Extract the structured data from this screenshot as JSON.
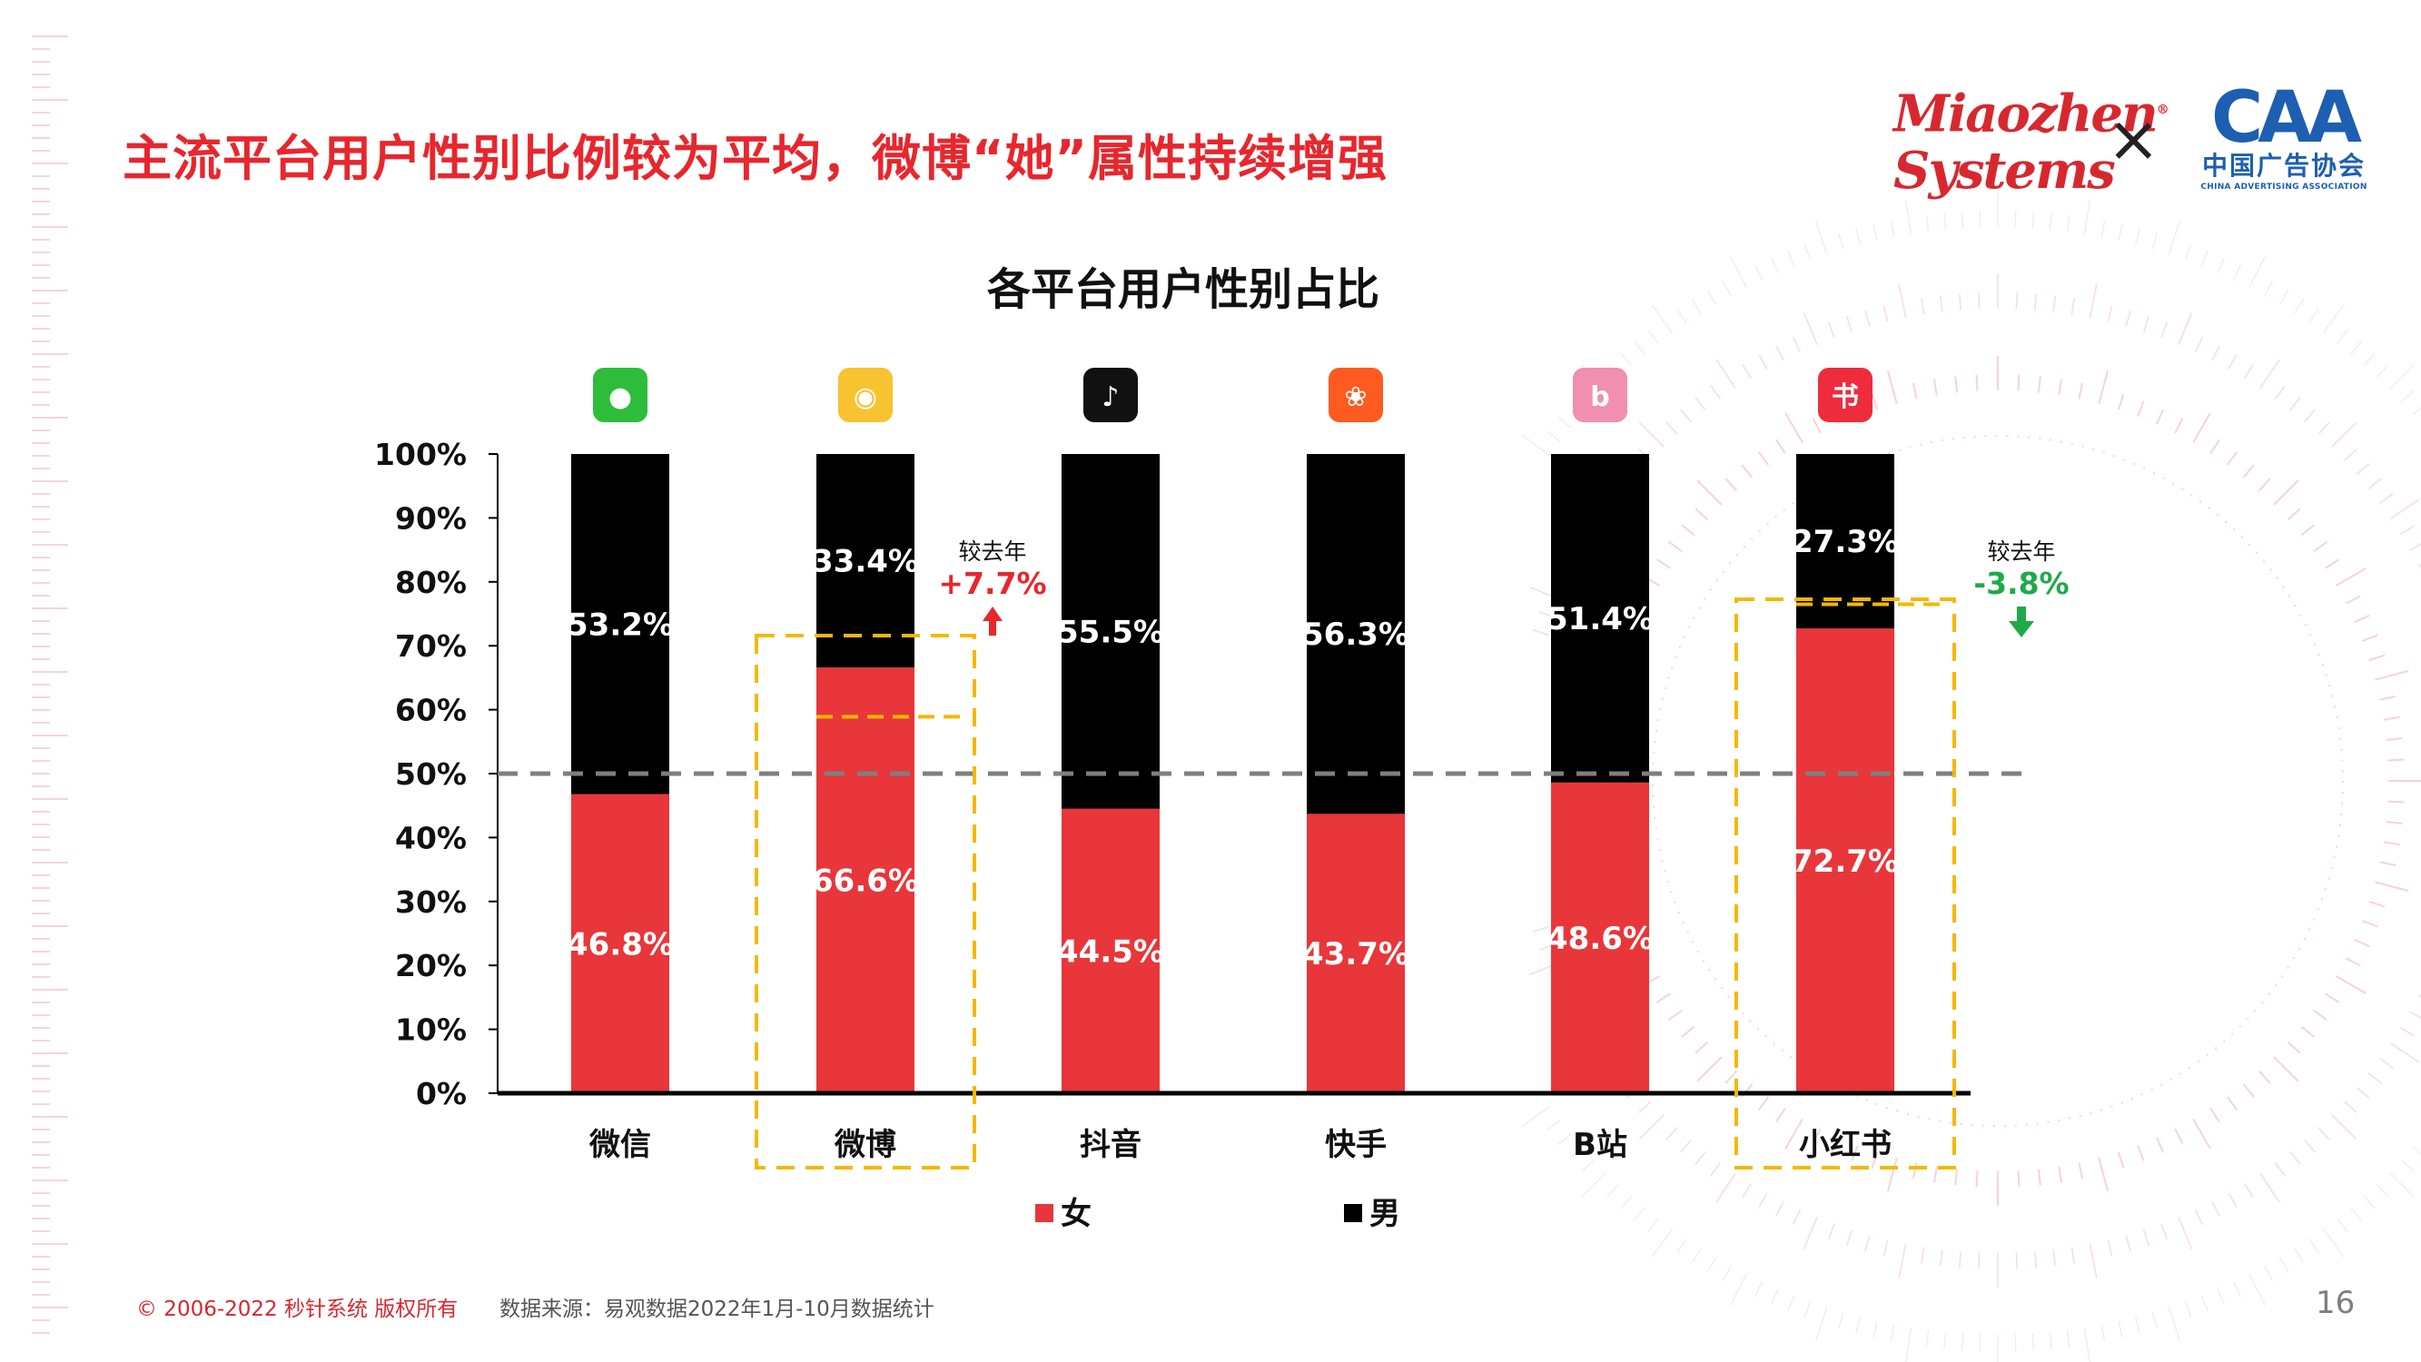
{
  "headline": "主流平台用户性别比例较为平均，微博“她”属性持续增强",
  "logos": {
    "miaozhen_line1": "Miaozhen",
    "miaozhen_line2": "Systems",
    "times": "×",
    "caa_mark": "CAA",
    "caa_cn": "中国广告协会",
    "caa_en": "CHINA ADVERTISING ASSOCIATION"
  },
  "colors": {
    "female": "#e8363a",
    "male": "#000000",
    "highlight": "#f5b800",
    "accent": "#e8262d",
    "down": "#1faa4a",
    "refline": "#7f7f7f"
  },
  "chart_data": {
    "type": "bar",
    "stacked": true,
    "title": "各平台用户性别占比",
    "categories": [
      "微信",
      "微博",
      "抖音",
      "快手",
      "B站",
      "小红书"
    ],
    "platform_icons": [
      "wechat-icon",
      "weibo-icon",
      "douyin-icon",
      "kuaishou-icon",
      "bilibili-icon",
      "xiaohongshu-icon"
    ],
    "series": [
      {
        "name": "女",
        "values": [
          46.8,
          66.6,
          44.5,
          43.7,
          48.6,
          72.7
        ]
      },
      {
        "name": "男",
        "values": [
          53.2,
          33.4,
          55.5,
          56.3,
          51.4,
          27.3
        ]
      }
    ],
    "ylim": [
      0,
      100
    ],
    "yticks": [
      "0%",
      "10%",
      "20%",
      "30%",
      "40%",
      "50%",
      "60%",
      "70%",
      "80%",
      "90%",
      "100%"
    ],
    "reference_line": 50,
    "legend_position": "bottom",
    "highlighted": [
      "微博",
      "小红书"
    ],
    "annotations": [
      {
        "category": "微博",
        "label": "较去年",
        "change": "+7.7%",
        "direction": "up",
        "previous_female": 58.9
      },
      {
        "category": "小红书",
        "label": "较去年",
        "change": "-3.8%",
        "direction": "down",
        "previous_female": 76.5
      }
    ]
  },
  "footer": {
    "copyright": "© 2006-2022 秒针系统 版权所有",
    "source": "数据来源：易观数据2022年1月-10月数据统计",
    "page": "16"
  }
}
